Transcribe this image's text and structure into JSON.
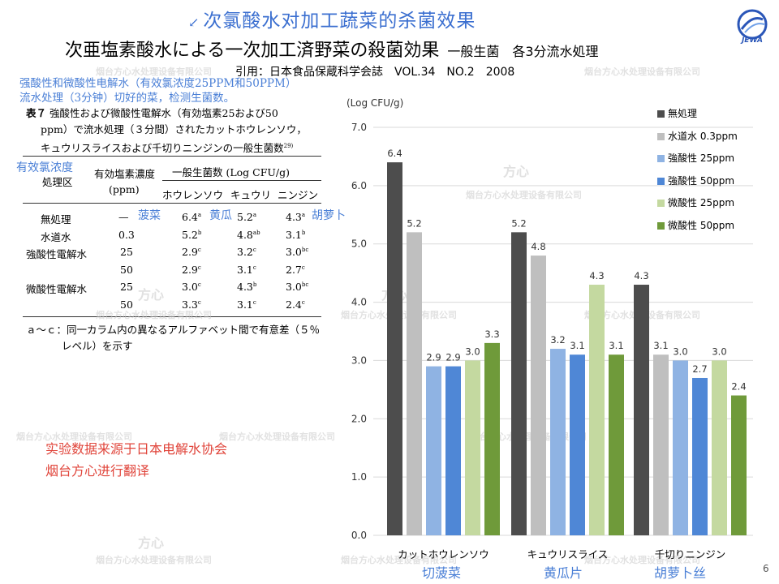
{
  "header": {
    "cn_title": "次氯酸水对加工蔬菜的杀菌效果",
    "jp_title": "次亜塩素酸水による一次加工済野菜の殺菌効果",
    "jp_subtitle": "一般生菌　各3分流水処理",
    "citation": "引用：日本食品保蔵科学会誌　VOL.34　NO.2　2008",
    "logo_text": "JEWA"
  },
  "notes": {
    "blue_line1": "强酸性和微酸性电解水（有效氯浓度25PPM和50PPM）",
    "blue_line2": "流水处理（3分钟）切好的菜，检测生菌数。",
    "effective_chlorine": "有效氯浓度",
    "spinach": "菠菜",
    "cucumber": "黄瓜",
    "carrot": "胡萝卜",
    "red_line1": "实验数据来源于日本电解水协会",
    "red_line2": "烟台方心进行翻译"
  },
  "table": {
    "caption_label": "表７",
    "caption_line1": "強酸性および微酸性電解水（有効塩素25および50",
    "caption_line2": "ppm）で流水処理（３分間）されたカットホウレンソウ，",
    "caption_line3": "キュウリスライスおよび千切りニンジンの一般生菌数",
    "caption_ref": "29)",
    "h_treatment": "処理区",
    "h_chlorine": "有効塩素濃度",
    "h_chlorine_unit": "(ppm)",
    "h_count": "一般生菌数 (Log CFU/g)",
    "h_spinach": "ホウレンソウ",
    "h_cucumber": "キュウリ",
    "h_carrot": "ニンジン",
    "rows": [
      {
        "name": "無処理",
        "ppm": "—",
        "v1": "6.4",
        "s1": "a",
        "v2": "5.2",
        "s2": "a",
        "v3": "4.3",
        "s3": "a"
      },
      {
        "name": "水道水",
        "ppm": "0.3",
        "v1": "5.2",
        "s1": "b",
        "v2": "4.8",
        "s2": "ab",
        "v3": "3.1",
        "s3": "b"
      },
      {
        "name": "強酸性電解水",
        "ppm": "25",
        "v1": "2.9",
        "s1": "c",
        "v2": "3.2",
        "s2": "c",
        "v3": "3.0",
        "s3": "bc"
      },
      {
        "name": "",
        "ppm": "50",
        "v1": "2.9",
        "s1": "c",
        "v2": "3.1",
        "s2": "c",
        "v3": "2.7",
        "s3": "c"
      },
      {
        "name": "微酸性電解水",
        "ppm": "25",
        "v1": "3.0",
        "s1": "c",
        "v2": "4.3",
        "s2": "b",
        "v3": "3.0",
        "s3": "bc"
      },
      {
        "name": "",
        "ppm": "50",
        "v1": "3.3",
        "s1": "c",
        "v2": "3.1",
        "s2": "c",
        "v3": "2.4",
        "s3": "c"
      }
    ],
    "footnote1": "ａ～ｃ：同一カラム内の異なるアルファベット間で有意差（５％",
    "footnote2": "レベル）を示す"
  },
  "watermark": {
    "brand": "方心",
    "company": "烟台方心水处理设备有限公司"
  },
  "page_number": "6",
  "cn_categories": [
    "切菠菜",
    "黄瓜片",
    "胡萝卜丝"
  ],
  "chart_data": {
    "type": "bar",
    "ylabel": "(Log CFU/g)",
    "ylim": [
      0,
      7
    ],
    "yticks": [
      "0.0",
      "1.0",
      "2.0",
      "3.0",
      "4.0",
      "5.0",
      "6.0",
      "7.0"
    ],
    "grid": true,
    "legend_position": "right",
    "categories": [
      "カットホウレンソウ",
      "キュウリスライス",
      "千切りニンジン"
    ],
    "series": [
      {
        "name": "無処理",
        "color": "#4d4d4d",
        "values": [
          6.4,
          5.2,
          4.3
        ],
        "labels": [
          "6.4",
          "5.2",
          "4.3"
        ]
      },
      {
        "name": "水道水 0.3ppm",
        "color": "#bfbfbf",
        "values": [
          5.2,
          4.8,
          3.1
        ],
        "labels": [
          "5.2",
          "4.8",
          "3.1"
        ]
      },
      {
        "name": "強酸性 25ppm",
        "color": "#8fb3e3",
        "values": [
          2.9,
          3.2,
          3.0
        ],
        "labels": [
          "2.9",
          "3.2",
          "3.0"
        ]
      },
      {
        "name": "強酸性 50ppm",
        "color": "#4f87d6",
        "values": [
          2.9,
          3.1,
          2.7
        ],
        "labels": [
          "2.9",
          "3.1",
          "2.7"
        ]
      },
      {
        "name": "微酸性 25ppm",
        "color": "#c4d9a0",
        "values": [
          3.0,
          4.3,
          3.0
        ],
        "labels": [
          "3.0",
          "4.3",
          "3.0"
        ]
      },
      {
        "name": "微酸性 50ppm",
        "color": "#6f9a3a",
        "values": [
          3.3,
          3.1,
          2.4
        ],
        "labels": [
          "3.3",
          "3.1",
          "2.4"
        ]
      }
    ]
  }
}
